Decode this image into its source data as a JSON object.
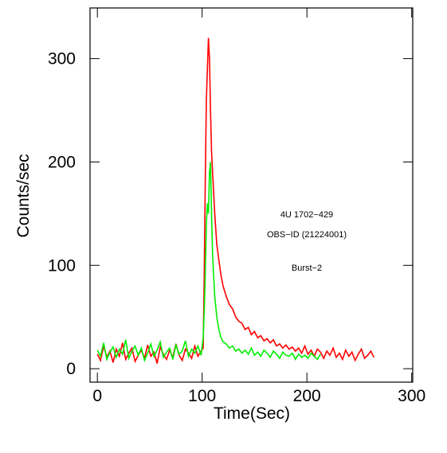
{
  "chart_data": {
    "type": "line",
    "xlabel": "Time(Sec)",
    "ylabel": "Counts/sec",
    "annotations": [
      "4U 1702−429",
      "OBS−ID (21224001)",
      "Burst−2"
    ],
    "xlim": [
      -7,
      301
    ],
    "ylim": [
      -13,
      349
    ],
    "xticks": [
      0,
      100,
      200,
      300
    ],
    "yticks": [
      0,
      100,
      200,
      300
    ],
    "series": [
      {
        "color": "#ff0000",
        "x": [
          0,
          3,
          6,
          9,
          12,
          15,
          18,
          21,
          24,
          27,
          30,
          33,
          36,
          39,
          42,
          45,
          48,
          51,
          54,
          57,
          60,
          63,
          66,
          69,
          72,
          75,
          78,
          81,
          84,
          87,
          90,
          93,
          96,
          99,
          101,
          102,
          103,
          104,
          105,
          106,
          107,
          108,
          109,
          110,
          112,
          114,
          116,
          118,
          120,
          123,
          126,
          129,
          132,
          135,
          138,
          141,
          144,
          147,
          150,
          153,
          156,
          159,
          162,
          165,
          168,
          171,
          174,
          177,
          180,
          183,
          186,
          189,
          192,
          195,
          198,
          201,
          204,
          207,
          210,
          213,
          216,
          219,
          222,
          225,
          228,
          231,
          234,
          237,
          240,
          243,
          246,
          249,
          252,
          255,
          258,
          261,
          264
        ],
        "values": [
          14,
          8,
          22,
          11,
          17,
          6,
          19,
          12,
          25,
          9,
          15,
          20,
          7,
          13,
          18,
          10,
          23,
          12,
          16,
          5,
          21,
          14,
          9,
          18,
          11,
          24,
          13,
          8,
          19,
          15,
          10,
          22,
          12,
          17,
          20,
          90,
          180,
          260,
          290,
          320,
          300,
          250,
          210,
          190,
          150,
          120,
          105,
          90,
          80,
          70,
          62,
          58,
          50,
          46,
          44,
          38,
          40,
          33,
          36,
          30,
          32,
          27,
          29,
          25,
          28,
          22,
          24,
          20,
          23,
          19,
          21,
          17,
          20,
          15,
          22,
          14,
          18,
          12,
          19,
          16,
          10,
          17,
          13,
          20,
          11,
          15,
          9,
          18,
          12,
          16,
          8,
          14,
          19,
          10,
          13,
          17,
          11
        ]
      },
      {
        "color": "#00ee00",
        "x": [
          0,
          3,
          6,
          9,
          12,
          15,
          18,
          21,
          24,
          27,
          30,
          33,
          36,
          39,
          42,
          45,
          48,
          51,
          54,
          57,
          60,
          63,
          66,
          69,
          72,
          75,
          78,
          81,
          84,
          87,
          90,
          93,
          96,
          99,
          101,
          102,
          103,
          104,
          105,
          106,
          107,
          108,
          109,
          110,
          112,
          114,
          116,
          118,
          120,
          123,
          126,
          129,
          132,
          135,
          138,
          141,
          144,
          147,
          150,
          153,
          156,
          159,
          162,
          165,
          168,
          171,
          174,
          177,
          180,
          183,
          186,
          189,
          192,
          195,
          198,
          201,
          204,
          207,
          210,
          213
        ],
        "values": [
          18,
          12,
          25,
          9,
          16,
          21,
          11,
          19,
          14,
          28,
          10,
          17,
          22,
          13,
          20,
          8,
          15,
          24,
          12,
          18,
          26,
          11,
          16,
          20,
          9,
          23,
          14,
          17,
          27,
          12,
          19,
          15,
          22,
          13,
          30,
          55,
          90,
          140,
          160,
          150,
          190,
          200,
          150,
          110,
          70,
          50,
          38,
          30,
          26,
          24,
          20,
          22,
          17,
          19,
          15,
          18,
          14,
          20,
          13,
          16,
          12,
          18,
          15,
          11,
          17,
          14,
          10,
          16,
          13,
          12,
          15,
          9,
          14,
          11,
          13,
          10,
          15,
          12,
          9,
          14
        ]
      }
    ]
  }
}
